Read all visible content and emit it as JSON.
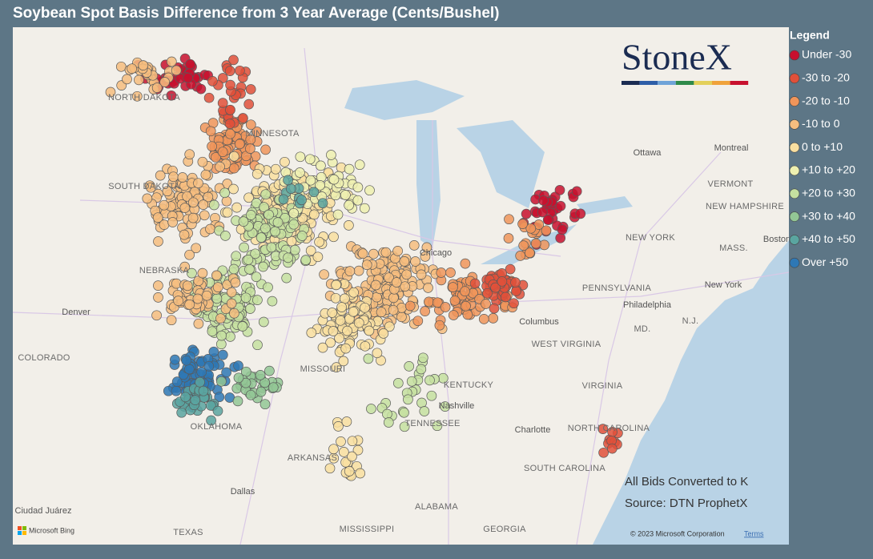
{
  "header": {
    "title": "Soybean Spot Basis Difference from 3 Year Average (Cents/Bushel)"
  },
  "logo": {
    "text": "StoneX"
  },
  "legend": {
    "title": "Legend",
    "items": [
      {
        "label": "Under -30",
        "color": "#c8102e"
      },
      {
        "label": "-30 to -20",
        "color": "#e0503a"
      },
      {
        "label": "-20 to -10",
        "color": "#f0955a"
      },
      {
        "label": "-10 to 0",
        "color": "#f6bd7f"
      },
      {
        "label": "0 to +10",
        "color": "#f9dfa0"
      },
      {
        "label": "+10 to +20",
        "color": "#eef0b0"
      },
      {
        "label": "+20 to +30",
        "color": "#c5e0a0"
      },
      {
        "label": "+30 to +40",
        "color": "#93c795"
      },
      {
        "label": "+40 to +50",
        "color": "#5aa5a0"
      },
      {
        "label": "Over +50",
        "color": "#2e78b5"
      }
    ]
  },
  "map": {
    "labels": [
      "NORTH DAKOTA",
      "MINNESOTA",
      "SOUTH DAKOTA",
      "NEBRASKA",
      "Denver",
      "COLORADO",
      "MISSOURI",
      "KENTUCKY",
      "Nashville",
      "TENNESSEE",
      "ARKANSAS",
      "OKLAHOMA",
      "Dallas",
      "TEXAS",
      "MISSISSIPPI",
      "ALABAMA",
      "GEORGIA",
      "SOUTH CAROLINA",
      "Charlotte",
      "NORTH CAROLINA",
      "VIRGINIA",
      "WEST VIRGINIA",
      "Columbus",
      "PENNSYLVANIA",
      "NEW YORK",
      "New York",
      "Philadelphia",
      "MD.",
      "N.J.",
      "Boston",
      "MASS.",
      "VERMONT",
      "NEW HAMPSHIRE",
      "Montreal",
      "Ottawa",
      "Chicago",
      "Ciudad Juárez"
    ]
  },
  "notes": [
    "All Bids Converted to K",
    "Source: DTN ProphetX"
  ],
  "attribution": {
    "bing": "Microsoft Bing",
    "copyright": "© 2023 Microsoft Corporation",
    "terms": "Terms"
  }
}
